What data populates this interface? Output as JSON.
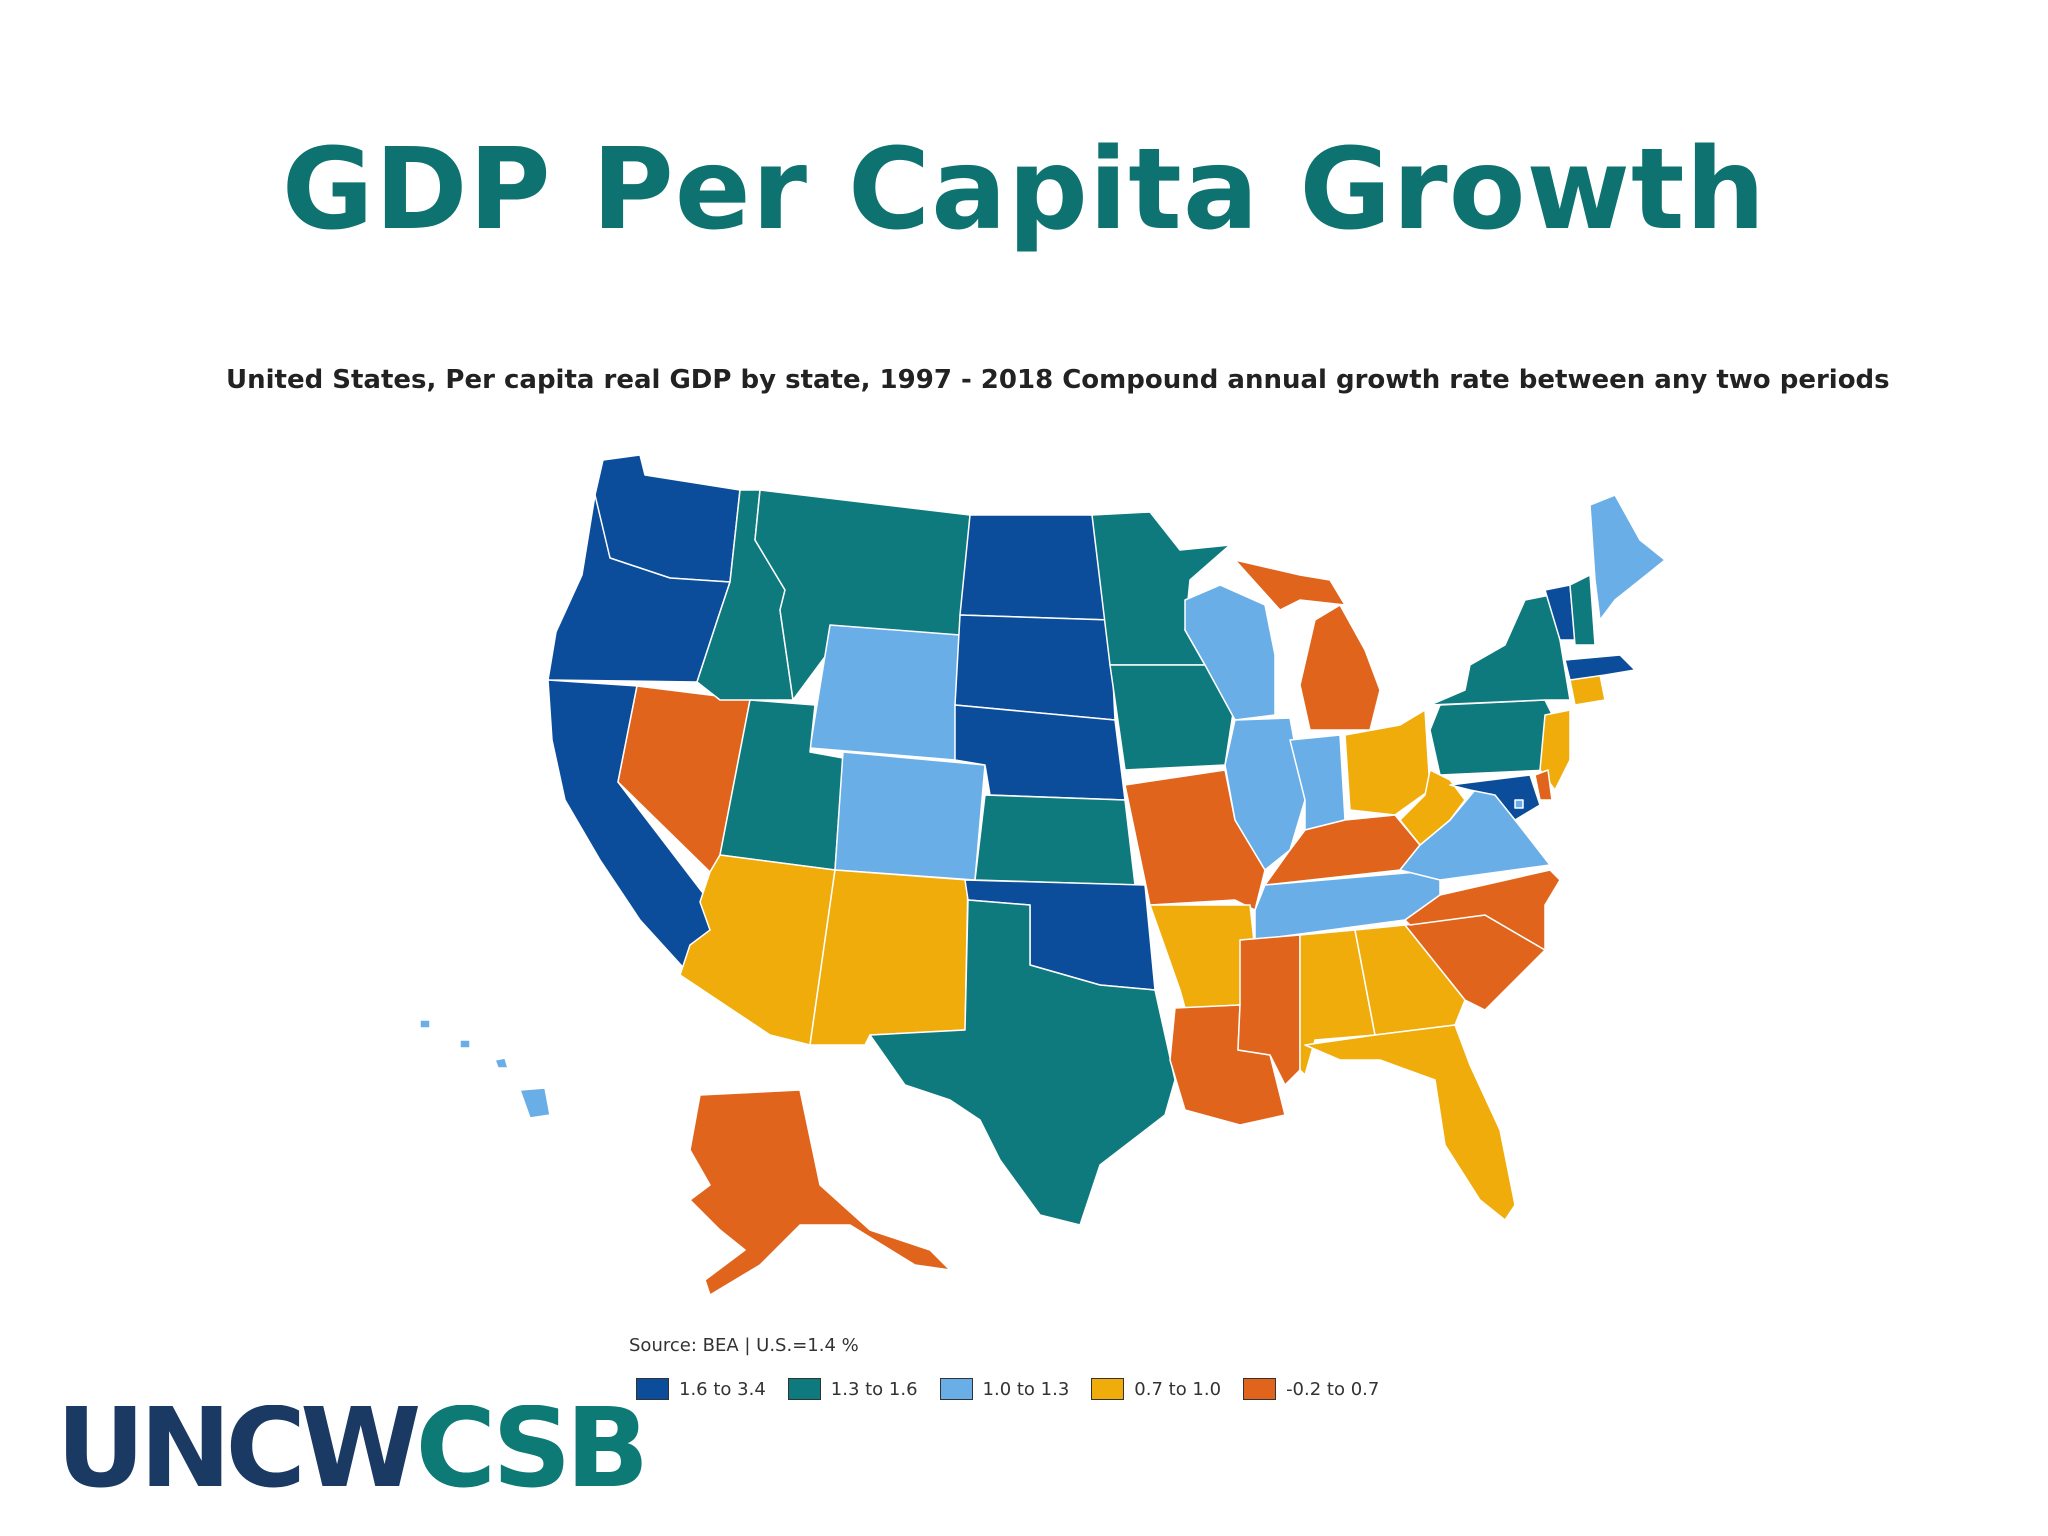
{
  "slide": {
    "title": "GDP Per Capita Growth"
  },
  "map": {
    "title": "United States, Per capita real GDP by state, 1997 - 2018 Compound annual growth rate between any two periods",
    "source": "Source: BEA | U.S.=1.4 %",
    "legend": [
      {
        "label": "1.6 to 3.4",
        "color": "#0b4d9a"
      },
      {
        "label": "1.3 to 1.6",
        "color": "#0e7a7e"
      },
      {
        "label": "1.0 to 1.3",
        "color": "#6aaee8"
      },
      {
        "label": "0.7 to 1.0",
        "color": "#f0ac0a"
      },
      {
        "label": "-0.2 to 0.7",
        "color": "#e0641c"
      }
    ],
    "states": {
      "WA": "1.6 to 3.4",
      "OR": "1.6 to 3.4",
      "CA": "1.6 to 3.4",
      "ND": "1.6 to 3.4",
      "SD": "1.6 to 3.4",
      "NE": "1.6 to 3.4",
      "OK": "1.6 to 3.4",
      "VT": "1.6 to 3.4",
      "MA": "1.6 to 3.4",
      "MD": "1.6 to 3.4",
      "ID": "1.3 to 1.6",
      "MT": "1.3 to 1.6",
      "UT": "1.3 to 1.6",
      "KS": "1.3 to 1.6",
      "MN": "1.3 to 1.6",
      "IA": "1.3 to 1.6",
      "TX": "1.3 to 1.6",
      "NY": "1.3 to 1.6",
      "PA": "1.3 to 1.6",
      "NH": "1.3 to 1.6",
      "WY": "1.0 to 1.3",
      "CO": "1.0 to 1.3",
      "WI": "1.0 to 1.3",
      "IL": "1.0 to 1.3",
      "IN": "1.0 to 1.3",
      "TN": "1.0 to 1.3",
      "VA": "1.0 to 1.3",
      "ME": "1.0 to 1.3",
      "HI": "1.0 to 1.3",
      "DC": "1.0 to 1.3",
      "AZ": "0.7 to 1.0",
      "NM": "0.7 to 1.0",
      "AR": "0.7 to 1.0",
      "OH": "0.7 to 1.0",
      "WV": "0.7 to 1.0",
      "AL": "0.7 to 1.0",
      "GA": "0.7 to 1.0",
      "FL": "0.7 to 1.0",
      "NJ": "0.7 to 1.0",
      "CT": "0.7 to 1.0",
      "NV": "-0.2 to 0.7",
      "MO": "-0.2 to 0.7",
      "LA": "-0.2 to 0.7",
      "MS": "-0.2 to 0.7",
      "KY": "-0.2 to 0.7",
      "MI": "-0.2 to 0.7",
      "NC": "-0.2 to 0.7",
      "SC": "-0.2 to 0.7",
      "AK": "-0.2 to 0.7",
      "DE": "-0.2 to 0.7"
    }
  },
  "logo": {
    "part1": "UNCW",
    "part2": "CSB"
  }
}
